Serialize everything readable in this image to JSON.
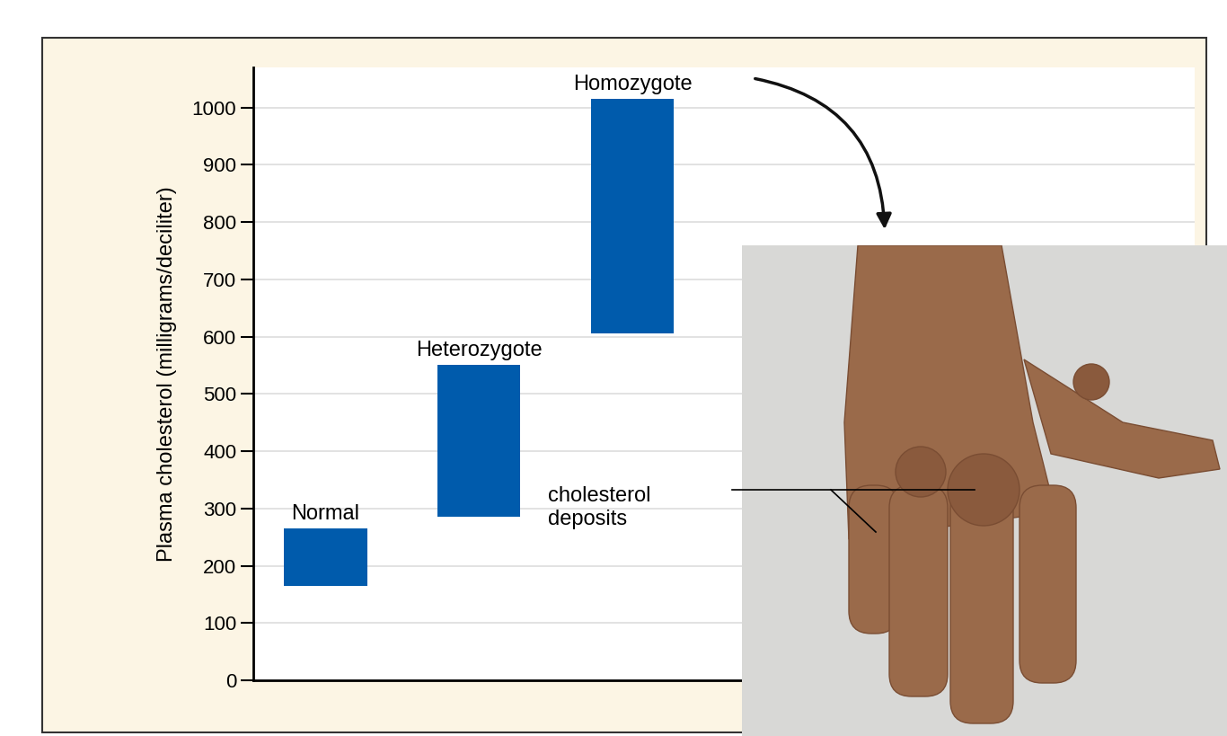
{
  "chart_data": {
    "type": "floating_bar",
    "y_label": "Plasma cholesterol (milligrams/deciliter)",
    "categories": [
      "Normal",
      "Heterozygote",
      "Homozygote"
    ],
    "low": [
      165,
      285,
      605
    ],
    "high": [
      265,
      550,
      1015
    ],
    "color": "#005bac",
    "ylim": [
      0,
      1070
    ],
    "yticks": [
      0,
      100,
      200,
      300,
      400,
      500,
      600,
      700,
      800,
      900,
      1000
    ],
    "grid": true,
    "tick_labels": "y",
    "annotation": "cholesterol deposits"
  }
}
